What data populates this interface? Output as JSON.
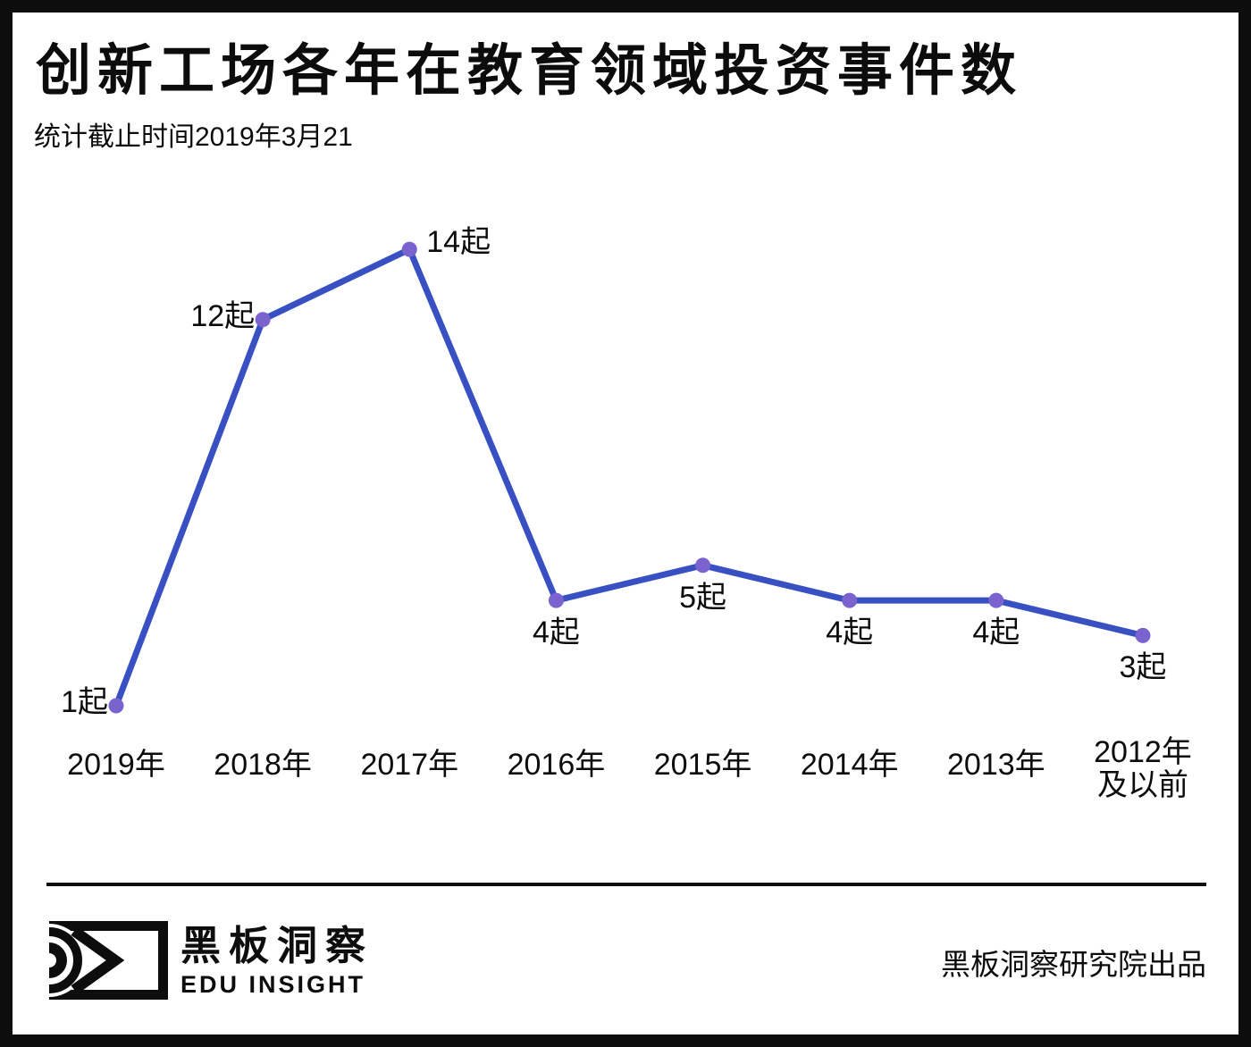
{
  "header": {
    "title": "创新工场各年在教育领域投资事件数",
    "subtitle": "统计截止时间2019年3月21"
  },
  "chart_data": {
    "type": "line",
    "title": "创新工场各年在教育领域投资事件数",
    "categories": [
      "2019年",
      "2018年",
      "2017年",
      "2016年",
      "2015年",
      "2014年",
      "2013年",
      "2012年\n及以前"
    ],
    "values": [
      1,
      12,
      14,
      4,
      5,
      4,
      4,
      3
    ],
    "point_labels": [
      "1起",
      "12起",
      "14起",
      "4起",
      "5起",
      "4起",
      "4起",
      "3起"
    ],
    "label_placements": [
      "left",
      "left",
      "right",
      "below",
      "below",
      "below",
      "below",
      "below"
    ],
    "unit": "起",
    "xlabel": "",
    "ylabel": "",
    "ylim": [
      0,
      15
    ],
    "grid": false,
    "legend": "none",
    "line_color": "#3850c2",
    "marker_color": "#7b63cf"
  },
  "footer": {
    "brand_cn": "黑板洞察",
    "brand_en": "EDU INSIGHT",
    "credit": "黑板洞察研究院出品",
    "logo": "eye-logo"
  },
  "colors": {
    "frame": "#0d0d0d",
    "background": "#ffffff",
    "text": "#0c0c0c"
  }
}
